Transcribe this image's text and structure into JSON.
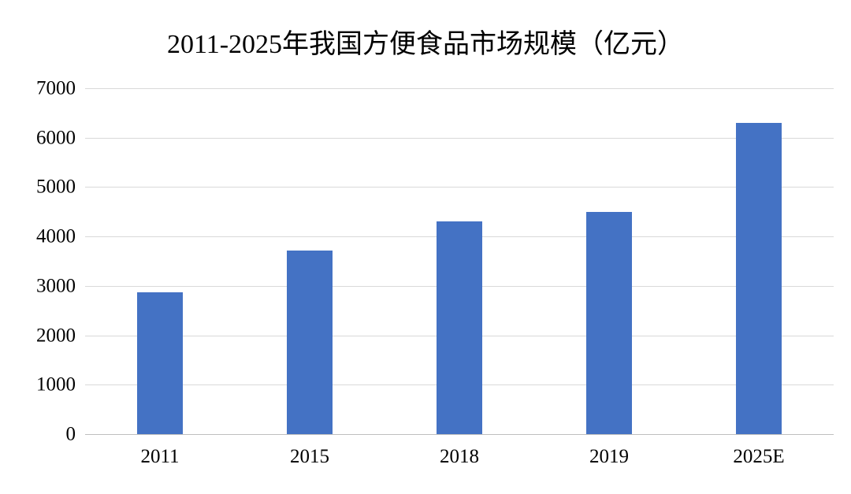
{
  "chart_data": {
    "type": "bar",
    "title": "2011-2025年我国方便食品市场规模（亿元）",
    "categories": [
      "2011",
      "2015",
      "2018",
      "2019",
      "2025E"
    ],
    "values": [
      2875,
      3720,
      4300,
      4500,
      6300
    ],
    "xlabel": "",
    "ylabel": "",
    "ylim": [
      0,
      7000
    ],
    "yticks": [
      0,
      1000,
      2000,
      3000,
      4000,
      5000,
      6000,
      7000
    ],
    "grid": "horizontal",
    "legend_position": "none",
    "bar_color": "#4472c4",
    "gridline_color": "#d9d9d9",
    "axis_line_color": "#bfbfbf",
    "text_color": "#000000",
    "background_color": "#ffffff"
  }
}
